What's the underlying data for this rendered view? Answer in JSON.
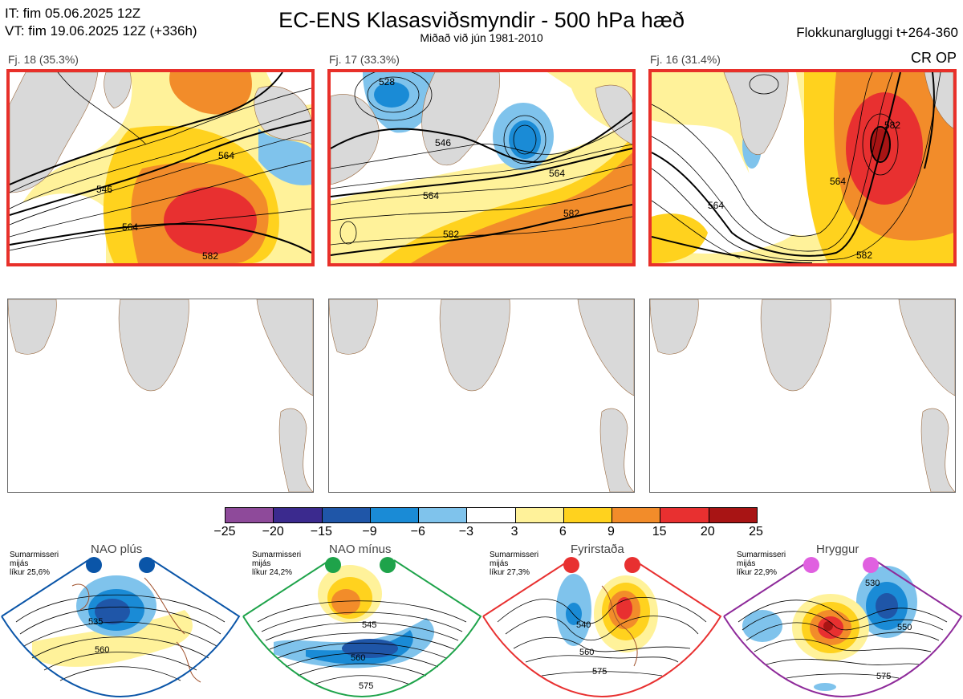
{
  "header": {
    "it_line": "IT: fim 05.06.2025 12Z",
    "vt_line": "VT: fim 19.06.2025 12Z  (+336h)",
    "title": "EC-ENS Klasasviðsmyndir - 500 hPa hæð",
    "subtitle": "Miðað við jún 1981-2010",
    "window": "Flokkunargluggi t+264-360",
    "crop": "CR OP"
  },
  "clusters": [
    {
      "label": "Fj. 18 (35.3%)",
      "contour_labels": [
        "546",
        "564",
        "582"
      ]
    },
    {
      "label": "Fj. 17 (33.3%)",
      "contour_labels": [
        "528",
        "546",
        "564",
        "582"
      ]
    },
    {
      "label": "Fj. 16 (31.4%)",
      "contour_labels": [
        "564",
        "582"
      ]
    }
  ],
  "colorbar": {
    "ticks": [
      "−25",
      "−20",
      "−15",
      "−9",
      "−6",
      "−3",
      "3",
      "6",
      "9",
      "15",
      "20",
      "25"
    ],
    "colors": [
      "#8e4a9a",
      "#3b2a8e",
      "#1f56a8",
      "#1a8bd6",
      "#7fc3ec",
      "#ffffff",
      "#fff29a",
      "#ffd21e",
      "#f28c2a",
      "#e83030",
      "#a81414"
    ]
  },
  "regimes": [
    {
      "name": "NAO plús",
      "season": "Sumarmisseri",
      "period": "mijás",
      "likur": "líkur 25,6%",
      "color": "#0a55a8",
      "dot": "#0a55a8",
      "labels": [
        "535",
        "560"
      ]
    },
    {
      "name": "NAO mínus",
      "season": "Sumarmisseri",
      "period": "mijás",
      "likur": "líkur 24,2%",
      "color": "#1ea34a",
      "dot": "#1ea34a",
      "labels": [
        "545",
        "560",
        "575"
      ]
    },
    {
      "name": "Fyrirstaða",
      "season": "Sumarmisseri",
      "period": "mijás",
      "likur": "líkur 27,3%",
      "color": "#e83030",
      "dot": "#e83030",
      "labels": [
        "540",
        "560",
        "575"
      ]
    },
    {
      "name": "Hryggur",
      "season": "Sumarmisseri",
      "period": "mijás",
      "likur": "líkur 22,9%",
      "color": "#8e2a9a",
      "dot": "#e060e0",
      "labels": [
        "530",
        "550",
        "575"
      ]
    }
  ]
}
